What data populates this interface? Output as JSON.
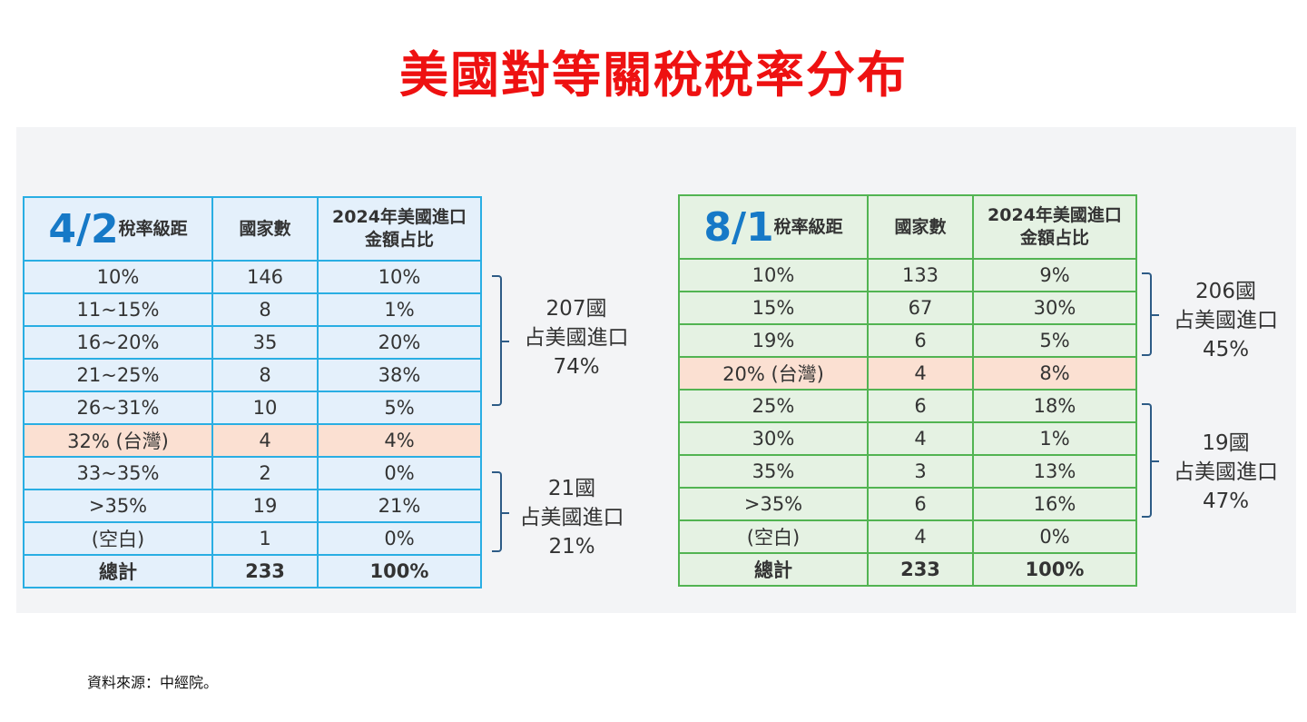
{
  "title": "美國對等關稅稅率分布",
  "table_left": {
    "date": "4/2",
    "header_label": "稅率級距",
    "col_countries": "國家數",
    "col_share": "2024年美國進口\n金額占比",
    "rows": [
      {
        "range": "10%",
        "countries": "146",
        "share": "10%"
      },
      {
        "range": "11~15%",
        "countries": "8",
        "share": "1%"
      },
      {
        "range": "16~20%",
        "countries": "35",
        "share": "20%"
      },
      {
        "range": "21~25%",
        "countries": "8",
        "share": "38%"
      },
      {
        "range": "26~31%",
        "countries": "10",
        "share": "5%"
      },
      {
        "range": "32% (台灣)",
        "countries": "4",
        "share": "4%",
        "highlight": true
      },
      {
        "range": "33~35%",
        "countries": "2",
        "share": "0%"
      },
      {
        "range": ">35%",
        "countries": "19",
        "share": "21%"
      },
      {
        "range": "(空白)",
        "countries": "1",
        "share": "0%"
      }
    ],
    "total": {
      "range": "總計",
      "countries": "233",
      "share": "100%"
    },
    "notes": [
      {
        "lines": [
          "207國",
          "占美國進口",
          "74%"
        ]
      },
      {
        "lines": [
          "21國",
          "占美國進口",
          "21%"
        ]
      }
    ]
  },
  "table_right": {
    "date": "8/1",
    "header_label": "稅率級距",
    "col_countries": "國家數",
    "col_share": "2024年美國進口\n金額占比",
    "rows": [
      {
        "range": "10%",
        "countries": "133",
        "share": "9%"
      },
      {
        "range": "15%",
        "countries": "67",
        "share": "30%"
      },
      {
        "range": "19%",
        "countries": "6",
        "share": "5%"
      },
      {
        "range": "20% (台灣)",
        "countries": "4",
        "share": "8%",
        "highlight": true
      },
      {
        "range": "25%",
        "countries": "6",
        "share": "18%"
      },
      {
        "range": "30%",
        "countries": "4",
        "share": "1%"
      },
      {
        "range": "35%",
        "countries": "3",
        "share": "13%"
      },
      {
        "range": ">35%",
        "countries": "6",
        "share": "16%"
      },
      {
        "range": "(空白)",
        "countries": "4",
        "share": "0%"
      }
    ],
    "total": {
      "range": "總計",
      "countries": "233",
      "share": "100%"
    },
    "notes": [
      {
        "lines": [
          "206國",
          "占美國進口",
          "45%"
        ]
      },
      {
        "lines": [
          "19國",
          "占美國進口",
          "47%"
        ]
      }
    ]
  },
  "source": "資料來源：中經院。",
  "colors": {
    "title": "#ee1111",
    "left_border": "#29aee3",
    "right_border": "#52b452",
    "taiwan_highlight": "#fbe0d2",
    "date_blue": "#1679c7"
  }
}
